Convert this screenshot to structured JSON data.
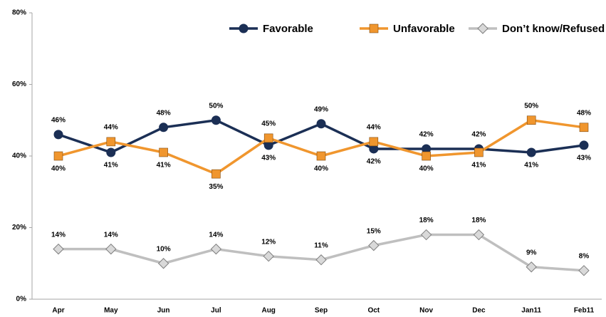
{
  "chart_data": {
    "type": "line",
    "categories": [
      "Apr",
      "May",
      "Jun",
      "Jul",
      "Aug",
      "Sep",
      "Oct",
      "Nov",
      "Dec",
      "Jan11",
      "Feb11"
    ],
    "series": [
      {
        "name": "Favorable",
        "color": "#1b2f55",
        "marker": "circle",
        "values": [
          46,
          41,
          48,
          50,
          43,
          49,
          42,
          42,
          42,
          41,
          43
        ],
        "value_labels": [
          "46%",
          "41%",
          "48%",
          "50%",
          "43%",
          "49%",
          "42%",
          "42%",
          "42%",
          "41%",
          "43%"
        ]
      },
      {
        "name": "Unfavorable",
        "color": "#f0962e",
        "marker": "square",
        "values": [
          40,
          44,
          41,
          35,
          45,
          40,
          44,
          40,
          41,
          50,
          48
        ],
        "value_labels": [
          "40%",
          "44%",
          "41%",
          "35%",
          "45%",
          "40%",
          "44%",
          "40%",
          "41%",
          "50%",
          "48%"
        ]
      },
      {
        "name": "Don’t know/Refused",
        "color": "#bfbfbf",
        "marker": "diamond",
        "values": [
          14,
          14,
          10,
          14,
          12,
          11,
          15,
          18,
          18,
          9,
          8
        ],
        "value_labels": [
          "14%",
          "14%",
          "10%",
          "14%",
          "12%",
          "11%",
          "15%",
          "18%",
          "18%",
          "9%",
          "8%"
        ]
      }
    ],
    "ylim": [
      0,
      80
    ],
    "yticks": [
      {
        "value": 0,
        "label": "0%"
      },
      {
        "value": 20,
        "label": "20%"
      },
      {
        "value": 40,
        "label": "40%"
      },
      {
        "value": 60,
        "label": "60%"
      },
      {
        "value": 80,
        "label": "80%"
      }
    ],
    "grid": false,
    "legend": "top-right"
  }
}
